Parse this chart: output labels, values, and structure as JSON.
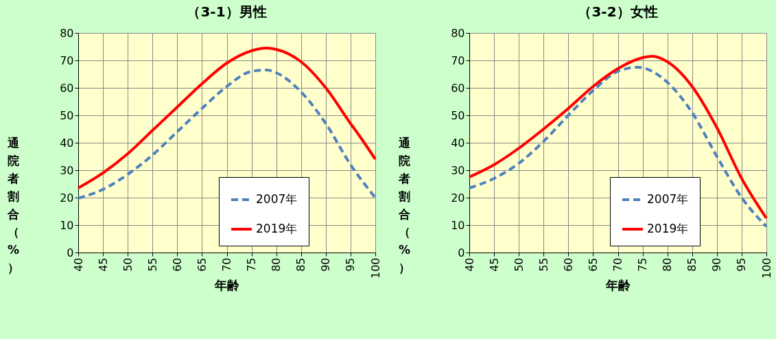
{
  "chart_data": [
    {
      "type": "line",
      "title": "（3-1）男性",
      "xlabel": "年齢",
      "ylabel": "通院者割合（%）",
      "xlim": [
        40,
        100
      ],
      "xticks": [
        40,
        45,
        50,
        55,
        60,
        65,
        70,
        75,
        80,
        85,
        90,
        95,
        100
      ],
      "ylim": [
        0,
        80
      ],
      "yticks": [
        0,
        10,
        20,
        30,
        40,
        50,
        60,
        70,
        80
      ],
      "grid": true,
      "legend": "bottom right",
      "series": [
        {
          "name": "2007年",
          "color": "#4f81bd",
          "line_style": "dashed",
          "x": [
            40,
            45,
            50,
            55,
            60,
            65,
            70,
            75,
            78,
            80,
            85,
            90,
            95,
            100
          ],
          "values": [
            19.8,
            23,
            28.5,
            35.5,
            44,
            52.5,
            60.5,
            66,
            66.5,
            65.5,
            58.5,
            47,
            32,
            20
          ]
        },
        {
          "name": "2019年",
          "color": "#ff0000",
          "line_style": "solid",
          "x": [
            40,
            45,
            50,
            55,
            60,
            65,
            70,
            75,
            78,
            80,
            85,
            90,
            95,
            97,
            100
          ],
          "values": [
            23.5,
            29,
            36,
            44.5,
            53,
            61.5,
            69,
            73.5,
            74.5,
            74,
            69.5,
            60,
            47,
            42,
            34
          ]
        }
      ]
    },
    {
      "type": "line",
      "title": "（3-2）女性",
      "xlabel": "年齢",
      "ylabel": "通院者割合（%）",
      "xlim": [
        40,
        100
      ],
      "xticks": [
        40,
        45,
        50,
        55,
        60,
        65,
        70,
        75,
        80,
        85,
        90,
        95,
        100
      ],
      "ylim": [
        0,
        80
      ],
      "yticks": [
        0,
        10,
        20,
        30,
        40,
        50,
        60,
        70,
        80
      ],
      "grid": true,
      "legend": "bottom right",
      "series": [
        {
          "name": "2007年",
          "color": "#4f81bd",
          "line_style": "dashed",
          "x": [
            40,
            45,
            50,
            55,
            60,
            65,
            70,
            74,
            80,
            85,
            90,
            95,
            100
          ],
          "values": [
            23.5,
            27,
            32.5,
            40.5,
            50,
            59,
            66,
            67.5,
            62,
            51,
            35,
            20,
            9.5
          ]
        },
        {
          "name": "2019年",
          "color": "#ff0000",
          "line_style": "solid",
          "x": [
            40,
            45,
            50,
            55,
            60,
            65,
            70,
            75,
            77,
            80,
            85,
            90,
            95,
            100
          ],
          "values": [
            27.5,
            32,
            38,
            45,
            52.5,
            60.5,
            67,
            71,
            71.5,
            69.5,
            60.5,
            45.5,
            27,
            12.5
          ]
        }
      ]
    }
  ]
}
